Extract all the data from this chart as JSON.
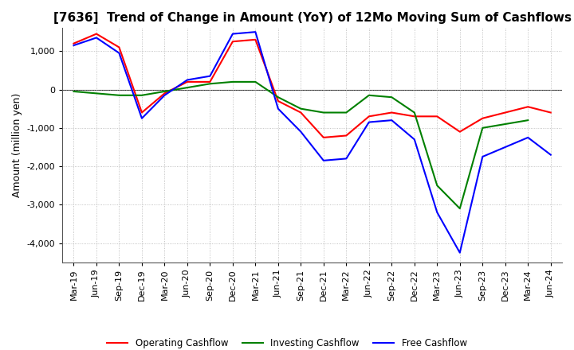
{
  "title": "[7636]  Trend of Change in Amount (YoY) of 12Mo Moving Sum of Cashflows",
  "ylabel": "Amount (million yen)",
  "ylim": [
    -4500,
    1600
  ],
  "yticks": [
    1000,
    0,
    -1000,
    -2000,
    -3000,
    -4000
  ],
  "x_labels": [
    "Mar-19",
    "Jun-19",
    "Sep-19",
    "Dec-19",
    "Mar-20",
    "Jun-20",
    "Sep-20",
    "Dec-20",
    "Mar-21",
    "Jun-21",
    "Sep-21",
    "Dec-21",
    "Mar-22",
    "Jun-22",
    "Sep-22",
    "Dec-22",
    "Mar-23",
    "Jun-23",
    "Sep-23",
    "Dec-23",
    "Mar-24",
    "Jun-24"
  ],
  "operating": [
    1200,
    1450,
    1100,
    -600,
    -100,
    200,
    200,
    1250,
    1300,
    -300,
    -600,
    -1250,
    -1200,
    -700,
    -600,
    -700,
    -700,
    -1100,
    -750,
    -600,
    -450,
    -600
  ],
  "investing": [
    -50,
    -100,
    -150,
    -150,
    -50,
    50,
    150,
    200,
    200,
    -200,
    -500,
    -600,
    -600,
    -150,
    -200,
    -600,
    -2500,
    -3100,
    -1000,
    -900,
    -800,
    null
  ],
  "free": [
    1150,
    1350,
    950,
    -750,
    -150,
    250,
    350,
    1450,
    1500,
    -500,
    -1100,
    -1850,
    -1800,
    -850,
    -800,
    -1300,
    -3200,
    -4250,
    -1750,
    -1500,
    -1250,
    -1700
  ],
  "line_colors": {
    "operating": "#ff0000",
    "investing": "#008000",
    "free": "#0000ff"
  },
  "legend_labels": [
    "Operating Cashflow",
    "Investing Cashflow",
    "Free Cashflow"
  ],
  "background_color": "#ffffff",
  "grid_color": "#aaaaaa",
  "border_color": "#555555",
  "title_fontsize": 11,
  "tick_fontsize": 8,
  "ylabel_fontsize": 9
}
